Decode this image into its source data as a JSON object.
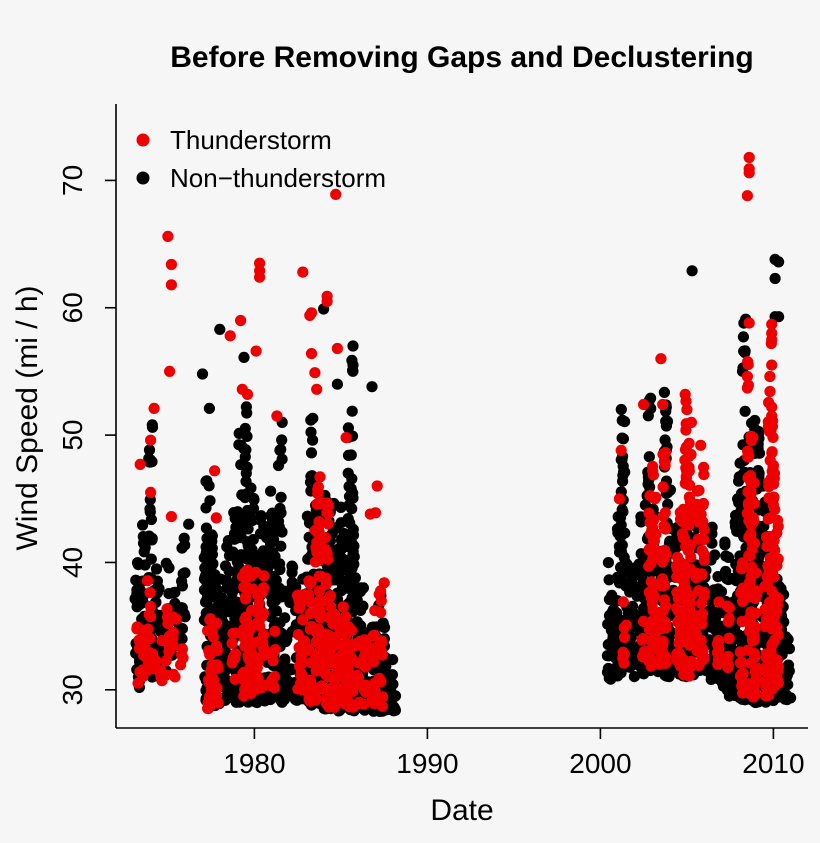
{
  "chart_data": {
    "type": "scatter",
    "title": "Before Removing Gaps and Declustering",
    "xlabel": "Date",
    "ylabel": "Wind Speed (mi / h)",
    "xlim": [
      1972,
      2012
    ],
    "ylim": [
      27,
      76
    ],
    "x_ticks": [
      1980,
      1990,
      2000,
      2010
    ],
    "x_tick_labels": [
      "1980",
      "1990",
      "2000",
      "2010"
    ],
    "y_ticks": [
      30,
      40,
      50,
      60,
      70
    ],
    "y_tick_labels": [
      "30",
      "40",
      "50",
      "60",
      "70"
    ],
    "legend_position": "top-left",
    "colors": {
      "thunderstorm": "#ee0000",
      "non_thunderstorm": "#000000"
    },
    "series": [
      {
        "name": "Non−thunderstorm",
        "color": "#000000",
        "ranges": [
          [
            1973.2,
            31.0,
            41.0
          ],
          [
            1973.4,
            30.0,
            38.5
          ],
          [
            1973.6,
            31.0,
            43.0
          ],
          [
            1973.8,
            32.0,
            36.5
          ],
          [
            1974.0,
            31.0,
            51.0
          ],
          [
            1974.3,
            32.0,
            40.5
          ],
          [
            1974.5,
            31.0,
            38.0
          ],
          [
            1974.8,
            32.0,
            37.0
          ],
          [
            1975.0,
            31.5,
            40.0
          ],
          [
            1975.3,
            32.0,
            38.0
          ],
          [
            1975.6,
            33.0,
            36.5
          ],
          [
            1975.9,
            34.0,
            42.5
          ],
          [
            1977.2,
            29.0,
            42.0
          ],
          [
            1977.3,
            28.8,
            47.5
          ],
          [
            1977.5,
            28.5,
            45.0
          ],
          [
            1977.7,
            28.3,
            40.0
          ],
          [
            1977.9,
            28.5,
            38.0
          ],
          [
            1978.1,
            29.0,
            39.0
          ],
          [
            1978.3,
            29.0,
            40.0
          ],
          [
            1978.5,
            29.5,
            42.0
          ],
          [
            1978.8,
            29.0,
            44.0
          ],
          [
            1979.0,
            29.0,
            45.0
          ],
          [
            1979.2,
            29.0,
            51.0
          ],
          [
            1979.5,
            29.5,
            53.5
          ],
          [
            1979.7,
            29.0,
            43.0
          ],
          [
            1979.9,
            29.2,
            47.0
          ],
          [
            1980.1,
            29.0,
            41.5
          ],
          [
            1980.3,
            29.2,
            44.5
          ],
          [
            1980.6,
            29.0,
            43.0
          ],
          [
            1980.8,
            29.2,
            40.0
          ],
          [
            1981.0,
            29.2,
            46.0
          ],
          [
            1981.2,
            29.2,
            42.0
          ],
          [
            1981.5,
            29.0,
            51.0
          ],
          [
            1981.8,
            29.2,
            38.0
          ],
          [
            1982.1,
            29.2,
            40.0
          ],
          [
            1982.4,
            29.0,
            38.5
          ],
          [
            1982.7,
            29.2,
            39.5
          ],
          [
            1982.9,
            29.2,
            38.0
          ],
          [
            1983.1,
            29.0,
            44.0
          ],
          [
            1983.3,
            28.8,
            52.0
          ],
          [
            1983.5,
            28.8,
            47.0
          ],
          [
            1983.7,
            28.8,
            44.0
          ],
          [
            1983.9,
            28.8,
            41.0
          ],
          [
            1984.1,
            28.5,
            48.0
          ],
          [
            1984.3,
            28.5,
            44.5
          ],
          [
            1984.5,
            28.5,
            46.0
          ],
          [
            1984.7,
            28.5,
            43.0
          ],
          [
            1984.9,
            28.3,
            41.5
          ],
          [
            1985.1,
            28.5,
            45.0
          ],
          [
            1985.3,
            28.5,
            43.0
          ],
          [
            1985.5,
            28.3,
            51.0
          ],
          [
            1985.7,
            28.3,
            56.0
          ],
          [
            1985.9,
            28.5,
            40.0
          ],
          [
            1986.1,
            28.5,
            39.0
          ],
          [
            1986.3,
            28.3,
            37.0
          ],
          [
            1986.6,
            28.5,
            34.0
          ],
          [
            1986.8,
            28.3,
            36.0
          ],
          [
            1987.0,
            28.5,
            35.0
          ],
          [
            1987.3,
            28.3,
            37.5
          ],
          [
            1987.5,
            28.3,
            38.0
          ],
          [
            1987.7,
            28.3,
            33.0
          ],
          [
            1987.9,
            28.3,
            34.5
          ],
          [
            1988.1,
            28.3,
            32.5
          ],
          [
            2000.5,
            30.8,
            40.0
          ],
          [
            2000.7,
            31.0,
            38.0
          ],
          [
            2000.9,
            31.0,
            37.5
          ],
          [
            2001.1,
            31.0,
            44.0
          ],
          [
            2001.3,
            31.0,
            53.0
          ],
          [
            2001.5,
            31.2,
            40.5
          ],
          [
            2001.7,
            31.5,
            38.0
          ],
          [
            2001.9,
            31.0,
            39.0
          ],
          [
            2002.2,
            31.5,
            42.0
          ],
          [
            2002.4,
            31.5,
            44.0
          ],
          [
            2002.6,
            31.2,
            39.0
          ],
          [
            2002.8,
            31.5,
            54.0
          ],
          [
            2003.0,
            31.2,
            45.5
          ],
          [
            2003.2,
            31.5,
            40.0
          ],
          [
            2003.4,
            31.2,
            38.5
          ],
          [
            2003.6,
            31.5,
            42.0
          ],
          [
            2003.8,
            31.0,
            54.5
          ],
          [
            2004.0,
            31.0,
            47.0
          ],
          [
            2004.3,
            31.2,
            40.0
          ],
          [
            2004.5,
            31.2,
            43.0
          ],
          [
            2004.8,
            31.0,
            39.0
          ],
          [
            2005.0,
            31.0,
            45.0
          ],
          [
            2005.3,
            31.0,
            40.0
          ],
          [
            2005.5,
            31.5,
            43.0
          ],
          [
            2005.7,
            31.5,
            41.0
          ],
          [
            2006.0,
            31.5,
            40.5
          ],
          [
            2006.3,
            31.0,
            37.0
          ],
          [
            2006.5,
            30.5,
            43.0
          ],
          [
            2006.7,
            30.5,
            38.0
          ],
          [
            2006.9,
            30.0,
            40.0
          ],
          [
            2007.1,
            30.0,
            39.0
          ],
          [
            2007.3,
            29.8,
            42.0
          ],
          [
            2007.5,
            29.5,
            38.5
          ],
          [
            2007.7,
            29.5,
            40.0
          ],
          [
            2007.9,
            29.3,
            45.0
          ],
          [
            2008.1,
            29.3,
            48.0
          ],
          [
            2008.3,
            29.2,
            59.0
          ],
          [
            2008.5,
            29.2,
            45.0
          ],
          [
            2008.7,
            29.2,
            51.0
          ],
          [
            2008.9,
            29.0,
            53.0
          ],
          [
            2009.1,
            29.0,
            52.5
          ],
          [
            2009.3,
            29.0,
            42.0
          ],
          [
            2009.5,
            29.0,
            45.0
          ],
          [
            2009.7,
            29.0,
            41.0
          ],
          [
            2009.9,
            29.0,
            46.0
          ],
          [
            2010.1,
            29.2,
            40.0
          ],
          [
            2010.3,
            29.2,
            39.0
          ],
          [
            2010.5,
            29.2,
            38.0
          ],
          [
            2010.7,
            29.2,
            36.0
          ],
          [
            2010.9,
            29.2,
            34.0
          ]
        ],
        "points": [
          [
            1977.0,
            54.8
          ],
          [
            1977.4,
            52.1
          ],
          [
            1978.0,
            58.3
          ],
          [
            1979.4,
            56.1
          ],
          [
            1984.0,
            59.9
          ],
          [
            1984.8,
            54.0
          ],
          [
            1985.7,
            57.0
          ],
          [
            1985.7,
            55.5
          ],
          [
            1986.8,
            53.8
          ],
          [
            2005.3,
            62.9
          ],
          [
            2008.4,
            59.1
          ],
          [
            2010.1,
            63.8
          ],
          [
            2010.3,
            63.6
          ],
          [
            2010.1,
            62.3
          ],
          [
            2010.1,
            59.3
          ],
          [
            2010.3,
            59.3
          ],
          [
            2002.6,
            44.5
          ],
          [
            2009.4,
            46.0
          ],
          [
            2008.6,
            49.0
          ],
          [
            1982.8,
            38.7
          ],
          [
            1976.2,
            43.0
          ],
          [
            1986.3,
            38.0
          ]
        ]
      },
      {
        "name": "Thunderstorm",
        "color": "#ee0000",
        "ranges": [
          [
            1973.3,
            30.5,
            35.0
          ],
          [
            1973.6,
            31.0,
            34.5
          ],
          [
            1973.9,
            31.5,
            40.0
          ],
          [
            1974.2,
            31.0,
            35.0
          ],
          [
            1974.6,
            30.5,
            34.0
          ],
          [
            1975.0,
            31.0,
            36.5
          ],
          [
            1975.4,
            31.0,
            36.0
          ],
          [
            1975.8,
            31.5,
            34.0
          ],
          [
            1977.4,
            28.5,
            37.0
          ],
          [
            1977.6,
            28.5,
            35.0
          ],
          [
            1977.8,
            28.8,
            36.0
          ],
          [
            1978.8,
            30.0,
            36.0
          ],
          [
            1979.4,
            29.5,
            40.0
          ],
          [
            1979.6,
            30.0,
            42.0
          ],
          [
            1979.8,
            29.5,
            39.0
          ],
          [
            1980.2,
            30.0,
            42.0
          ],
          [
            1980.5,
            30.0,
            39.0
          ],
          [
            1981.1,
            30.0,
            35.0
          ],
          [
            1982.6,
            30.0,
            38.0
          ],
          [
            1982.8,
            30.0,
            39.0
          ],
          [
            1983.2,
            29.0,
            40.0
          ],
          [
            1983.6,
            29.0,
            46.0
          ],
          [
            1983.8,
            29.0,
            47.0
          ],
          [
            1984.2,
            28.5,
            46.0
          ],
          [
            1984.4,
            28.5,
            38.0
          ],
          [
            1984.6,
            28.5,
            36.0
          ],
          [
            1985.0,
            28.3,
            36.0
          ],
          [
            1985.2,
            28.3,
            37.0
          ],
          [
            1985.4,
            28.3,
            36.0
          ],
          [
            1985.6,
            28.5,
            35.0
          ],
          [
            1986.0,
            28.5,
            35.0
          ],
          [
            1986.4,
            28.5,
            34.0
          ],
          [
            1986.9,
            28.5,
            37.0
          ],
          [
            1987.3,
            28.5,
            38.0
          ],
          [
            2001.4,
            32.0,
            37.0
          ],
          [
            2002.5,
            32.0,
            36.0
          ],
          [
            2002.9,
            31.5,
            46.0
          ],
          [
            2003.1,
            31.5,
            49.0
          ],
          [
            2003.5,
            32.0,
            42.0
          ],
          [
            2003.7,
            32.0,
            50.0
          ],
          [
            2004.5,
            31.5,
            44.0
          ],
          [
            2004.7,
            31.5,
            45.0
          ],
          [
            2004.9,
            31.0,
            53.0
          ],
          [
            2005.2,
            31.0,
            51.0
          ],
          [
            2005.6,
            31.5,
            46.5
          ],
          [
            2005.9,
            32.0,
            49.0
          ],
          [
            2006.8,
            32.0,
            37.0
          ],
          [
            2007.4,
            31.5,
            38.0
          ],
          [
            2008.2,
            29.5,
            40.0
          ],
          [
            2008.6,
            29.5,
            56.0
          ],
          [
            2008.8,
            29.3,
            50.0
          ],
          [
            2009.0,
            29.5,
            40.0
          ],
          [
            2009.6,
            29.5,
            42.0
          ],
          [
            2009.8,
            30.0,
            59.0
          ],
          [
            2010.0,
            30.0,
            52.0
          ],
          [
            2010.2,
            30.5,
            44.0
          ]
        ],
        "points": [
          [
            1973.4,
            47.7
          ],
          [
            1974.0,
            49.6
          ],
          [
            1974.0,
            45.5
          ],
          [
            1974.2,
            52.1
          ],
          [
            1975.0,
            65.6
          ],
          [
            1975.1,
            55.0
          ],
          [
            1975.2,
            63.4
          ],
          [
            1975.2,
            61.8
          ],
          [
            1975.2,
            43.6
          ],
          [
            1977.7,
            47.2
          ],
          [
            1977.8,
            43.5
          ],
          [
            1978.6,
            57.8
          ],
          [
            1979.2,
            59.0
          ],
          [
            1979.3,
            53.6
          ],
          [
            1979.6,
            53.2
          ],
          [
            1980.1,
            56.6
          ],
          [
            1980.3,
            63.5
          ],
          [
            1980.3,
            62.9
          ],
          [
            1980.3,
            62.4
          ],
          [
            1981.3,
            51.5
          ],
          [
            1982.8,
            62.8
          ],
          [
            1983.2,
            59.4
          ],
          [
            1983.3,
            59.6
          ],
          [
            1983.3,
            56.4
          ],
          [
            1983.5,
            54.9
          ],
          [
            1983.6,
            53.6
          ],
          [
            1984.2,
            60.9
          ],
          [
            1984.2,
            60.5
          ],
          [
            1984.7,
            68.9
          ],
          [
            1984.8,
            56.8
          ],
          [
            1985.3,
            49.8
          ],
          [
            1986.7,
            43.8
          ],
          [
            1987.1,
            46.0
          ],
          [
            1987.0,
            43.9
          ],
          [
            1987.5,
            38.4
          ],
          [
            2001.1,
            45.0
          ],
          [
            2001.2,
            48.8
          ],
          [
            2002.5,
            52.4
          ],
          [
            2003.5,
            56.0
          ],
          [
            2003.6,
            52.4
          ],
          [
            2004.9,
            53.2
          ],
          [
            2005.0,
            52.0
          ],
          [
            2005.8,
            49.2
          ],
          [
            2008.6,
            71.8
          ],
          [
            2008.6,
            70.9
          ],
          [
            2008.6,
            70.6
          ],
          [
            2008.5,
            68.8
          ],
          [
            2008.6,
            58.8
          ],
          [
            2008.5,
            54.6
          ],
          [
            2008.5,
            53.7
          ],
          [
            2009.9,
            58.7
          ],
          [
            2009.9,
            58.0
          ],
          [
            2009.9,
            57.5
          ],
          [
            2009.9,
            55.5
          ],
          [
            2009.8,
            54.6
          ],
          [
            2009.9,
            52.2
          ],
          [
            2009.9,
            51.5
          ],
          [
            2010.0,
            45.0
          ],
          [
            2008.7,
            49.9
          ],
          [
            2009.6,
            42.0
          ]
        ]
      }
    ]
  }
}
